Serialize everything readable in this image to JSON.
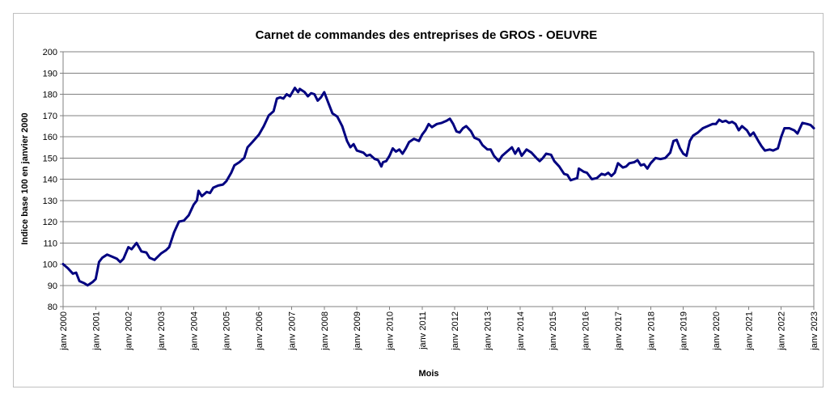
{
  "chart_data": {
    "type": "line",
    "title": "Carnet de commandes des entreprises de GROS - OEUVRE",
    "xlabel": "Mois",
    "ylabel": "Indice base 100 en janvier 2000",
    "ylim": [
      80,
      200
    ],
    "yticks": [
      80,
      90,
      100,
      110,
      120,
      130,
      140,
      150,
      160,
      170,
      180,
      190,
      200
    ],
    "xlim": [
      2000,
      2023
    ],
    "xticks": [
      {
        "value": 2000,
        "label": "janv 2000"
      },
      {
        "value": 2001,
        "label": "janv 2001"
      },
      {
        "value": 2002,
        "label": "janv 2002"
      },
      {
        "value": 2003,
        "label": "janv 2003"
      },
      {
        "value": 2004,
        "label": "janv 2004"
      },
      {
        "value": 2005,
        "label": "janv 2005"
      },
      {
        "value": 2006,
        "label": "janv 2006"
      },
      {
        "value": 2007,
        "label": "janv 2007"
      },
      {
        "value": 2008,
        "label": "janv 2008"
      },
      {
        "value": 2009,
        "label": "janv 2009"
      },
      {
        "value": 2010,
        "label": "janv 2010"
      },
      {
        "value": 2011,
        "label": "janv 2011"
      },
      {
        "value": 2012,
        "label": "janv 2012"
      },
      {
        "value": 2013,
        "label": "janv 2013"
      },
      {
        "value": 2014,
        "label": "janv 2014"
      },
      {
        "value": 2015,
        "label": "janv 2015"
      },
      {
        "value": 2016,
        "label": "janv 2016"
      },
      {
        "value": 2017,
        "label": "janv 2017"
      },
      {
        "value": 2018,
        "label": "janv 2018"
      },
      {
        "value": 2019,
        "label": "janv 2019"
      },
      {
        "value": 2020,
        "label": "janv 2020"
      },
      {
        "value": 2021,
        "label": "janv 2021"
      },
      {
        "value": 2022,
        "label": "janv 2022"
      },
      {
        "value": 2023,
        "label": "janv 2023"
      }
    ],
    "grid": true,
    "legend": false,
    "series": [
      {
        "color": "#000080",
        "points": [
          [
            2000.0,
            100
          ],
          [
            2000.15,
            98
          ],
          [
            2000.3,
            95.5
          ],
          [
            2000.4,
            96
          ],
          [
            2000.5,
            92
          ],
          [
            2000.65,
            91
          ],
          [
            2000.75,
            90
          ],
          [
            2000.9,
            91.5
          ],
          [
            2001.0,
            93
          ],
          [
            2001.1,
            101
          ],
          [
            2001.2,
            103
          ],
          [
            2001.35,
            104.5
          ],
          [
            2001.5,
            103.5
          ],
          [
            2001.65,
            102.5
          ],
          [
            2001.75,
            101
          ],
          [
            2001.85,
            102.5
          ],
          [
            2002.0,
            108
          ],
          [
            2002.1,
            107
          ],
          [
            2002.25,
            110
          ],
          [
            2002.4,
            106
          ],
          [
            2002.55,
            105.5
          ],
          [
            2002.65,
            103
          ],
          [
            2002.8,
            102
          ],
          [
            2003.0,
            105
          ],
          [
            2003.15,
            106.5
          ],
          [
            2003.25,
            108
          ],
          [
            2003.4,
            115
          ],
          [
            2003.55,
            120
          ],
          [
            2003.7,
            120.5
          ],
          [
            2003.85,
            123
          ],
          [
            2004.0,
            128
          ],
          [
            2004.1,
            130
          ],
          [
            2004.15,
            134.5
          ],
          [
            2004.25,
            132
          ],
          [
            2004.4,
            134
          ],
          [
            2004.5,
            133.5
          ],
          [
            2004.6,
            136
          ],
          [
            2004.75,
            137
          ],
          [
            2004.9,
            137.5
          ],
          [
            2005.0,
            139
          ],
          [
            2005.15,
            143
          ],
          [
            2005.25,
            146.5
          ],
          [
            2005.4,
            148
          ],
          [
            2005.55,
            150
          ],
          [
            2005.65,
            155
          ],
          [
            2005.8,
            157.5
          ],
          [
            2006.0,
            161
          ],
          [
            2006.15,
            165
          ],
          [
            2006.3,
            170
          ],
          [
            2006.45,
            172
          ],
          [
            2006.55,
            178
          ],
          [
            2006.65,
            178.5
          ],
          [
            2006.75,
            178
          ],
          [
            2006.85,
            180
          ],
          [
            2006.95,
            179
          ],
          [
            2007.1,
            183
          ],
          [
            2007.2,
            181
          ],
          [
            2007.25,
            182.5
          ],
          [
            2007.4,
            181
          ],
          [
            2007.5,
            179
          ],
          [
            2007.6,
            180.5
          ],
          [
            2007.7,
            180
          ],
          [
            2007.8,
            177
          ],
          [
            2007.9,
            178.5
          ],
          [
            2008.0,
            181
          ],
          [
            2008.1,
            177
          ],
          [
            2008.25,
            171
          ],
          [
            2008.4,
            169.5
          ],
          [
            2008.55,
            165
          ],
          [
            2008.7,
            158
          ],
          [
            2008.8,
            155
          ],
          [
            2008.9,
            156.5
          ],
          [
            2009.0,
            153.5
          ],
          [
            2009.2,
            152.5
          ],
          [
            2009.3,
            151
          ],
          [
            2009.4,
            151.5
          ],
          [
            2009.55,
            149.5
          ],
          [
            2009.65,
            149
          ],
          [
            2009.75,
            146
          ],
          [
            2009.8,
            148
          ],
          [
            2009.9,
            148.5
          ],
          [
            2010.0,
            151
          ],
          [
            2010.1,
            154.5
          ],
          [
            2010.2,
            153
          ],
          [
            2010.3,
            154
          ],
          [
            2010.4,
            152
          ],
          [
            2010.5,
            154.5
          ],
          [
            2010.6,
            157.5
          ],
          [
            2010.75,
            159
          ],
          [
            2010.9,
            158
          ],
          [
            2011.0,
            161
          ],
          [
            2011.1,
            163
          ],
          [
            2011.2,
            166
          ],
          [
            2011.3,
            164.5
          ],
          [
            2011.45,
            166
          ],
          [
            2011.6,
            166.5
          ],
          [
            2011.75,
            167.5
          ],
          [
            2011.85,
            168.5
          ],
          [
            2011.95,
            166
          ],
          [
            2012.05,
            162.5
          ],
          [
            2012.15,
            162
          ],
          [
            2012.25,
            164
          ],
          [
            2012.35,
            165
          ],
          [
            2012.5,
            162.5
          ],
          [
            2012.6,
            159.5
          ],
          [
            2012.75,
            158.5
          ],
          [
            2012.85,
            156
          ],
          [
            2013.0,
            154
          ],
          [
            2013.1,
            154
          ],
          [
            2013.2,
            151
          ],
          [
            2013.35,
            148.5
          ],
          [
            2013.45,
            151
          ],
          [
            2013.6,
            153
          ],
          [
            2013.75,
            155
          ],
          [
            2013.85,
            152
          ],
          [
            2013.95,
            154.5
          ],
          [
            2014.05,
            151
          ],
          [
            2014.2,
            154
          ],
          [
            2014.35,
            152.5
          ],
          [
            2014.5,
            150
          ],
          [
            2014.6,
            148.5
          ],
          [
            2014.7,
            150
          ],
          [
            2014.8,
            152
          ],
          [
            2014.95,
            151.5
          ],
          [
            2015.05,
            148.5
          ],
          [
            2015.2,
            146
          ],
          [
            2015.35,
            142.5
          ],
          [
            2015.45,
            142
          ],
          [
            2015.55,
            139.5
          ],
          [
            2015.65,
            140
          ],
          [
            2015.75,
            140.5
          ],
          [
            2015.8,
            145
          ],
          [
            2015.95,
            143.5
          ],
          [
            2016.05,
            143
          ],
          [
            2016.2,
            140
          ],
          [
            2016.35,
            140.5
          ],
          [
            2016.5,
            142.5
          ],
          [
            2016.6,
            142
          ],
          [
            2016.7,
            143
          ],
          [
            2016.8,
            141.5
          ],
          [
            2016.9,
            143
          ],
          [
            2017.0,
            147.5
          ],
          [
            2017.15,
            145.5
          ],
          [
            2017.25,
            146
          ],
          [
            2017.35,
            147.5
          ],
          [
            2017.5,
            148
          ],
          [
            2017.6,
            149
          ],
          [
            2017.7,
            146.5
          ],
          [
            2017.8,
            147
          ],
          [
            2017.9,
            145
          ],
          [
            2018.0,
            147.5
          ],
          [
            2018.15,
            150
          ],
          [
            2018.3,
            149.5
          ],
          [
            2018.45,
            150
          ],
          [
            2018.6,
            152.5
          ],
          [
            2018.7,
            158
          ],
          [
            2018.8,
            158.5
          ],
          [
            2018.9,
            154.5
          ],
          [
            2019.0,
            152
          ],
          [
            2019.1,
            151
          ],
          [
            2019.2,
            158
          ],
          [
            2019.3,
            160.5
          ],
          [
            2019.45,
            162
          ],
          [
            2019.6,
            164
          ],
          [
            2019.75,
            165
          ],
          [
            2019.9,
            166
          ],
          [
            2020.0,
            166
          ],
          [
            2020.1,
            168
          ],
          [
            2020.2,
            167
          ],
          [
            2020.3,
            167.5
          ],
          [
            2020.4,
            166.5
          ],
          [
            2020.5,
            167
          ],
          [
            2020.6,
            166
          ],
          [
            2020.7,
            163
          ],
          [
            2020.8,
            165
          ],
          [
            2020.95,
            163
          ],
          [
            2021.05,
            160.5
          ],
          [
            2021.15,
            162
          ],
          [
            2021.3,
            158
          ],
          [
            2021.4,
            155.5
          ],
          [
            2021.5,
            153.5
          ],
          [
            2021.65,
            154
          ],
          [
            2021.75,
            153.5
          ],
          [
            2021.9,
            154.5
          ],
          [
            2022.0,
            160
          ],
          [
            2022.1,
            164
          ],
          [
            2022.25,
            164
          ],
          [
            2022.4,
            163
          ],
          [
            2022.5,
            161.5
          ],
          [
            2022.65,
            166.5
          ],
          [
            2022.8,
            166
          ],
          [
            2022.9,
            165.5
          ],
          [
            2023.0,
            164
          ]
        ]
      }
    ]
  }
}
